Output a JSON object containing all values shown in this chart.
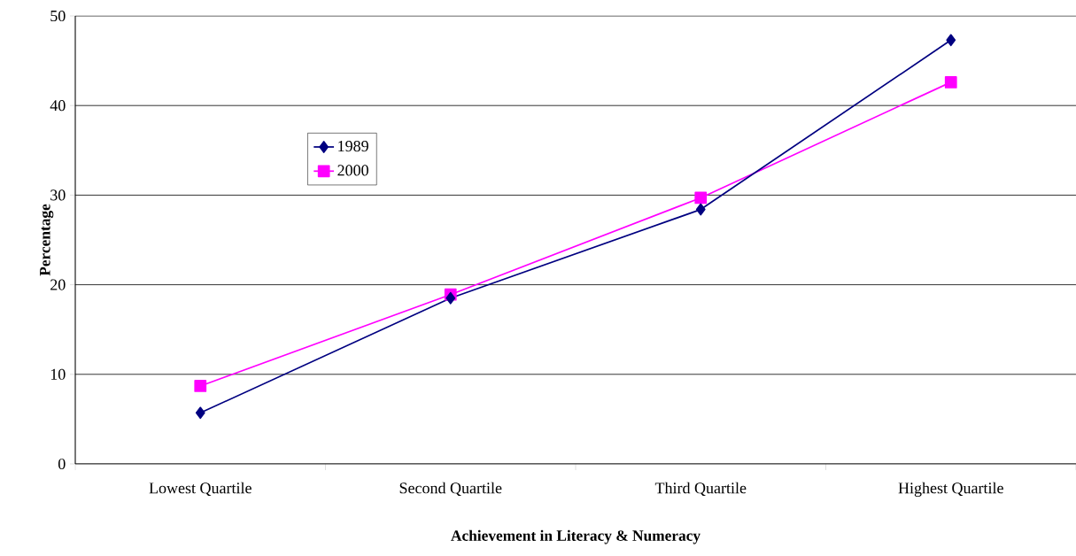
{
  "chart_data": {
    "type": "line",
    "xlabel": "Achievement in Literacy & Numeracy",
    "ylabel": "Percentage",
    "categories": [
      "Lowest Quartile",
      "Second Quartile",
      "Third Quartile",
      "Highest Quartile"
    ],
    "series": [
      {
        "name": "1989",
        "color": "#000080",
        "marker": "diamond",
        "values": [
          5.7,
          18.5,
          28.4,
          47.3
        ]
      },
      {
        "name": "2000",
        "color": "#ff00ff",
        "marker": "square",
        "values": [
          8.7,
          18.9,
          29.7,
          42.6
        ]
      }
    ],
    "ylim": [
      0,
      50
    ],
    "yticks": [
      0,
      10,
      20,
      30,
      40,
      50
    ],
    "grid": "y",
    "legend": "top left",
    "line_style": "solid"
  }
}
